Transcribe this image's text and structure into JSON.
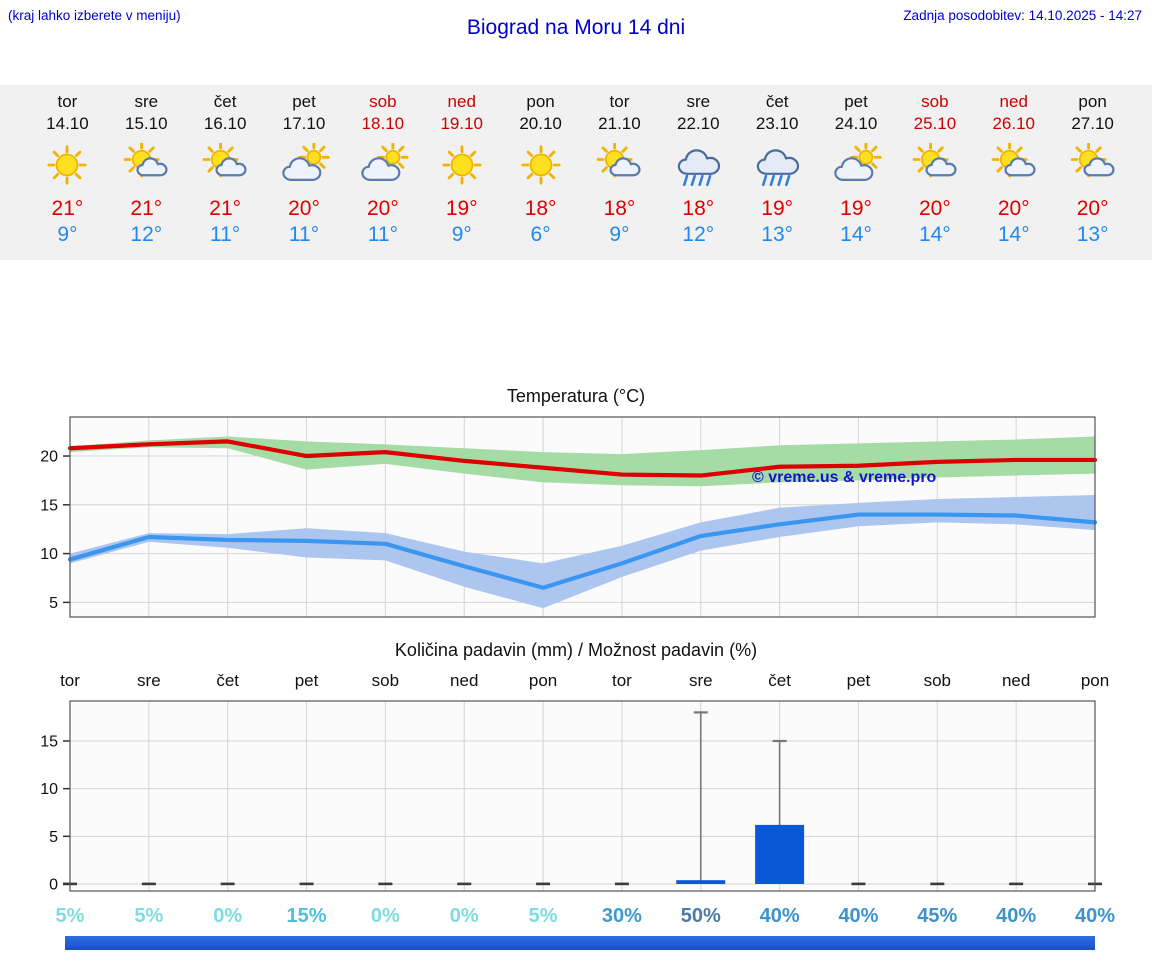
{
  "colors": {
    "link_blue": "#0000cc",
    "weekend_red": "#cc0000",
    "temp_max_red": "#dd0000",
    "temp_min_blue": "#2288ee",
    "band_green": "#a5dca5",
    "band_blue": "#adc6f0",
    "bar_blue": "#0a58d8",
    "strip_bg": "#f1f1f1",
    "footer_blue": "#1b57cc",
    "watermark_blue": "#1414cc"
  },
  "header": {
    "menu_hint": "(kraj lahko izberete v meniju)",
    "title": "Biograd na Moru 14 dni",
    "last_update": "Zadnja posodobitev: 14.10.2025 - 14:27"
  },
  "forecast_strip": {
    "days": [
      {
        "day": "tor",
        "date": "14.10",
        "weekend": false,
        "icon": "sunny",
        "tmax": "21°",
        "tmin": "9°"
      },
      {
        "day": "sre",
        "date": "15.10",
        "weekend": false,
        "icon": "partly-cloudy",
        "tmax": "21°",
        "tmin": "12°"
      },
      {
        "day": "čet",
        "date": "16.10",
        "weekend": false,
        "icon": "partly-cloudy",
        "tmax": "21°",
        "tmin": "11°"
      },
      {
        "day": "pet",
        "date": "17.10",
        "weekend": false,
        "icon": "mostly-cloudy",
        "tmax": "20°",
        "tmin": "11°"
      },
      {
        "day": "sob",
        "date": "18.10",
        "weekend": true,
        "icon": "mostly-cloudy",
        "tmax": "20°",
        "tmin": "11°"
      },
      {
        "day": "ned",
        "date": "19.10",
        "weekend": true,
        "icon": "sunny",
        "tmax": "19°",
        "tmin": "9°"
      },
      {
        "day": "pon",
        "date": "20.10",
        "weekend": false,
        "icon": "sunny",
        "tmax": "18°",
        "tmin": "6°"
      },
      {
        "day": "tor",
        "date": "21.10",
        "weekend": false,
        "icon": "partly-cloudy",
        "tmax": "18°",
        "tmin": "9°"
      },
      {
        "day": "sre",
        "date": "22.10",
        "weekend": false,
        "icon": "rain",
        "tmax": "18°",
        "tmin": "12°"
      },
      {
        "day": "čet",
        "date": "23.10",
        "weekend": false,
        "icon": "rain",
        "tmax": "19°",
        "tmin": "13°"
      },
      {
        "day": "pet",
        "date": "24.10",
        "weekend": false,
        "icon": "mostly-cloudy",
        "tmax": "19°",
        "tmin": "14°"
      },
      {
        "day": "sob",
        "date": "25.10",
        "weekend": true,
        "icon": "partly-cloudy",
        "tmax": "20°",
        "tmin": "14°"
      },
      {
        "day": "ned",
        "date": "26.10",
        "weekend": true,
        "icon": "partly-cloudy",
        "tmax": "20°",
        "tmin": "14°"
      },
      {
        "day": "pon",
        "date": "27.10",
        "weekend": false,
        "icon": "partly-cloudy",
        "tmax": "20°",
        "tmin": "13°"
      }
    ]
  },
  "chart_data": [
    {
      "type": "line",
      "title": "Temperatura (°C)",
      "categories": [
        "tor 14.10",
        "sre 15.10",
        "čet 16.10",
        "pet 17.10",
        "sob 18.10",
        "ned 19.10",
        "pon 20.10",
        "tor 21.10",
        "sre 22.10",
        "čet 23.10",
        "pet 24.10",
        "sob 25.10",
        "ned 26.10",
        "pon 27.10"
      ],
      "ylim": [
        3.5,
        24
      ],
      "yticks": [
        5,
        10,
        15,
        20
      ],
      "grid": true,
      "legend": "none",
      "series": [
        {
          "name": "max-temperature-line",
          "color": "#dd0000",
          "values": [
            20.8,
            21.2,
            21.5,
            20.0,
            20.4,
            19.5,
            18.8,
            18.1,
            18.0,
            18.9,
            19.0,
            19.4,
            19.6,
            19.6
          ]
        },
        {
          "name": "min-temperature-line",
          "color": "#3a96ee",
          "values": [
            9.4,
            11.7,
            11.4,
            11.3,
            11.0,
            8.7,
            6.5,
            9.0,
            11.8,
            13.0,
            14.0,
            14.0,
            13.9,
            13.2
          ]
        }
      ],
      "bands": [
        {
          "name": "max-temp-range-band",
          "color": "#a5dca5",
          "upper": [
            21.0,
            21.6,
            22.0,
            21.5,
            21.2,
            20.8,
            20.4,
            20.2,
            20.6,
            21.1,
            21.3,
            21.5,
            21.7,
            22.0
          ],
          "lower": [
            20.4,
            20.9,
            20.8,
            18.6,
            19.2,
            18.2,
            17.3,
            17.0,
            16.9,
            17.3,
            17.5,
            17.8,
            18.0,
            18.2
          ]
        },
        {
          "name": "min-temp-range-band",
          "color": "#adc6f0",
          "upper": [
            10.0,
            12.1,
            12.0,
            12.6,
            12.1,
            10.2,
            9.0,
            10.8,
            13.2,
            14.7,
            15.2,
            15.6,
            15.8,
            16.0
          ],
          "lower": [
            9.0,
            11.2,
            10.6,
            9.6,
            9.3,
            6.6,
            4.4,
            7.6,
            10.3,
            11.7,
            12.8,
            13.2,
            13.0,
            12.4
          ]
        }
      ],
      "watermark": "© vreme.us & vreme.pro"
    },
    {
      "type": "bar",
      "title": "Količina padavin (mm) / Možnost padavin (%)",
      "categories": [
        "tor",
        "sre",
        "čet",
        "pet",
        "sob",
        "ned",
        "pon",
        "tor",
        "sre",
        "čet",
        "pet",
        "sob",
        "ned",
        "pon"
      ],
      "ylim": [
        0,
        19.2
      ],
      "yticks": [
        0,
        5,
        10,
        15
      ],
      "grid": true,
      "values": [
        0,
        0,
        0,
        0,
        0,
        0,
        0,
        0,
        0.4,
        6.2,
        0,
        0,
        0,
        0
      ],
      "whisker_max": [
        0,
        0,
        0,
        0,
        0,
        0,
        0,
        0,
        18,
        15,
        0,
        0,
        0,
        0
      ],
      "probabilities": [
        {
          "label": "5%",
          "color": "#7fdce0"
        },
        {
          "label": "5%",
          "color": "#7fdce0"
        },
        {
          "label": "0%",
          "color": "#7fdce0"
        },
        {
          "label": "15%",
          "color": "#4fc0dc"
        },
        {
          "label": "0%",
          "color": "#7fdce0"
        },
        {
          "label": "0%",
          "color": "#7fdce0"
        },
        {
          "label": "5%",
          "color": "#7fdce0"
        },
        {
          "label": "30%",
          "color": "#3e9ad2"
        },
        {
          "label": "50%",
          "color": "#4a7ba6"
        },
        {
          "label": "40%",
          "color": "#3e93cc"
        },
        {
          "label": "40%",
          "color": "#3e93cc"
        },
        {
          "label": "45%",
          "color": "#3e93cc"
        },
        {
          "label": "40%",
          "color": "#3e93cc"
        },
        {
          "label": "40%",
          "color": "#3e93cc"
        }
      ]
    }
  ]
}
